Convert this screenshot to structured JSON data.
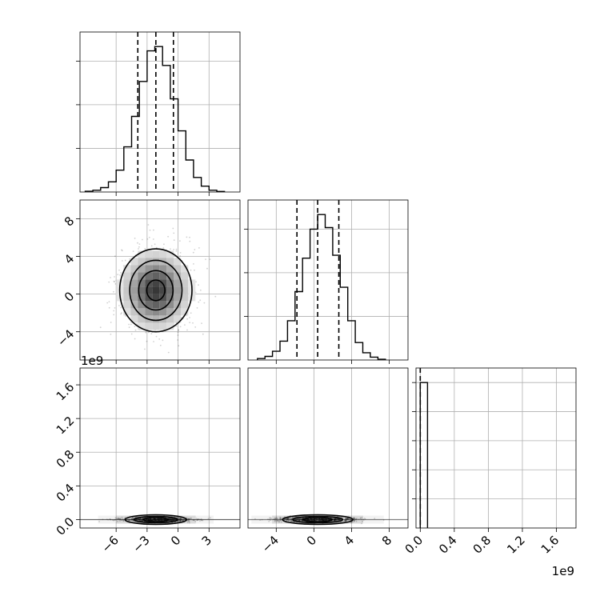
{
  "chart_data": {
    "type": "corner",
    "background": "#ffffff",
    "line_color": "#000000",
    "grid_color": "#b0b0b0",
    "grid": true,
    "quantiles_style": "dashed",
    "panels": [
      {
        "id": "hist-x",
        "type": "histogram",
        "xlim": [
          -9.5,
          6.0
        ],
        "ylim": [
          0,
          1.1
        ],
        "x_ticks": [
          -6,
          -3,
          0,
          3
        ],
        "bin_edges": [
          -9.0,
          -8.25,
          -7.5,
          -6.75,
          -6.0,
          -5.25,
          -4.5,
          -3.75,
          -3.0,
          -2.25,
          -1.5,
          -0.75,
          0.0,
          0.75,
          1.5,
          2.25,
          3.0,
          3.75,
          4.5
        ],
        "counts": [
          0.005,
          0.012,
          0.03,
          0.07,
          0.15,
          0.31,
          0.52,
          0.76,
          0.97,
          1.0,
          0.87,
          0.64,
          0.42,
          0.22,
          0.1,
          0.04,
          0.012,
          0.004
        ],
        "quantiles": [
          -3.9,
          -2.15,
          -0.45
        ],
        "grid_y": [
          0.3,
          0.6,
          0.9
        ]
      },
      {
        "id": "hist-y",
        "type": "histogram",
        "xlim": [
          -7.0,
          10.0
        ],
        "ylim": [
          0,
          1.1
        ],
        "x_ticks": [
          -4,
          0,
          4,
          8
        ],
        "bin_edges": [
          -6.0,
          -5.2,
          -4.4,
          -3.6,
          -2.8,
          -2.0,
          -1.2,
          -0.4,
          0.4,
          1.2,
          2.0,
          2.8,
          3.6,
          4.4,
          5.2,
          6.0,
          6.8,
          7.6
        ],
        "counts": [
          0.01,
          0.025,
          0.06,
          0.13,
          0.27,
          0.47,
          0.7,
          0.9,
          1.0,
          0.91,
          0.72,
          0.5,
          0.27,
          0.12,
          0.05,
          0.02,
          0.005
        ],
        "quantiles": [
          -1.8,
          0.4,
          2.65
        ],
        "grid_y": [
          0.3,
          0.6,
          0.9
        ]
      },
      {
        "id": "hist-z",
        "type": "histogram",
        "xlim": [
          -0.05,
          1.83
        ],
        "ylim": [
          0,
          1.1
        ],
        "x_ticks": [
          0.0,
          0.4,
          0.8,
          1.2,
          1.6
        ],
        "x_tick_labels": [
          "0.0",
          "0.4",
          "0.8",
          "1.2",
          "1.6"
        ],
        "x_exponent": "1e9",
        "bin_edges": [
          0.0,
          0.085
        ],
        "counts": [
          1.0
        ],
        "quantiles": [
          0.0
        ],
        "grid_y": [
          0.2,
          0.4,
          0.6,
          0.8,
          1.0
        ]
      },
      {
        "id": "scatter-x-y",
        "type": "density2d",
        "xlim": [
          -9.5,
          6.0
        ],
        "ylim": [
          -7.0,
          10.0
        ],
        "x_ticks": [
          -6,
          -3,
          0,
          3
        ],
        "y_ticks": [
          -4,
          0,
          4,
          8
        ],
        "y_tick_labels": [
          "−4",
          "0",
          "4",
          "8"
        ],
        "center": [
          -2.15,
          0.4
        ],
        "sigma": [
          1.75,
          2.2
        ]
      },
      {
        "id": "scatter-x-z",
        "type": "density2d",
        "xlim": [
          -9.5,
          6.0
        ],
        "ylim": [
          -0.1,
          1.8
        ],
        "x_ticks": [
          -6,
          -3,
          0,
          3
        ],
        "x_tick_labels": [
          "−6",
          "−3",
          "0",
          "3"
        ],
        "y_ticks": [
          0.0,
          0.4,
          0.8,
          1.2,
          1.6
        ],
        "y_tick_labels": [
          "0.0",
          "0.4",
          "0.8",
          "1.2",
          "1.6"
        ],
        "y_exponent": "1e9",
        "center": [
          -2.15,
          0.0
        ],
        "sigma": [
          1.75,
          0.02
        ]
      },
      {
        "id": "scatter-y-z",
        "type": "density2d",
        "xlim": [
          -7.0,
          10.0
        ],
        "ylim": [
          -0.1,
          1.8
        ],
        "x_ticks": [
          -4,
          0,
          4,
          8
        ],
        "x_tick_labels": [
          "−4",
          "0",
          "4",
          "8"
        ],
        "center": [
          0.4,
          0.0
        ],
        "sigma": [
          2.2,
          0.02
        ]
      }
    ]
  }
}
